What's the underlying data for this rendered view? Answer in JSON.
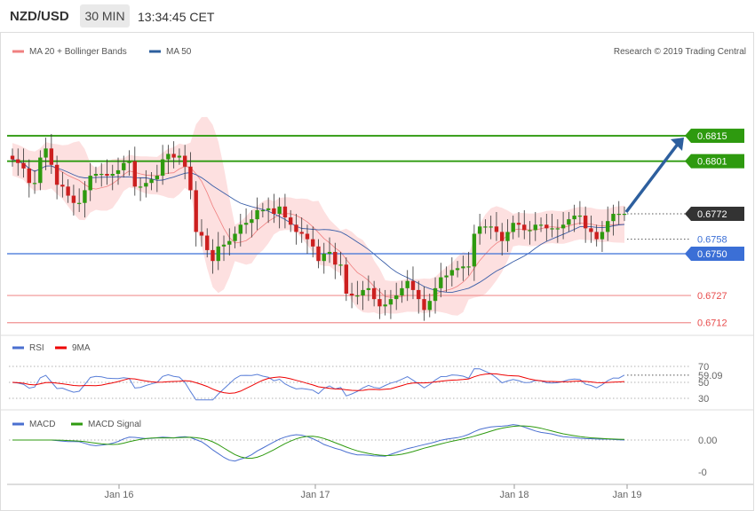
{
  "header": {
    "pair": "NZD/USD",
    "timeframe": "30 MIN",
    "time": "13:34:45 CET"
  },
  "main_legend": {
    "ma20": "MA 20 + Bollinger Bands",
    "ma50": "MA 50",
    "copyright": "Research © 2019 Trading Central"
  },
  "rsi_legend": {
    "rsi": "RSI",
    "ma9": "9MA"
  },
  "macd_legend": {
    "macd": "MACD",
    "signal": "MACD Signal"
  },
  "colors": {
    "green": "#2e9a0f",
    "blue": "#3b6fd6",
    "red": "#e84c4c",
    "dark": "#333333",
    "band": "#fde0e0",
    "macd": "#4a6fd0",
    "signal": "#2e9a0f",
    "arrow": "#2d5f9e"
  },
  "chart_data": [
    {
      "type": "candlestick",
      "title": "NZD/USD 30 MIN",
      "x_ticks": [
        "Jan 16",
        "Jan 17",
        "Jan 18",
        "Jan 19"
      ],
      "ylim": [
        0.6705,
        0.683
      ],
      "levels": [
        {
          "label": "0.6815",
          "value": 0.6815,
          "kind": "resistance target"
        },
        {
          "label": "0.6801",
          "value": 0.6801,
          "kind": "resistance target"
        },
        {
          "label": "0.6772",
          "value": 0.6772,
          "kind": "last price"
        },
        {
          "label": "0.6758",
          "value": 0.6758,
          "kind": "ma50"
        },
        {
          "label": "0.6750",
          "value": 0.675,
          "kind": "pivot"
        },
        {
          "label": "0.6727",
          "value": 0.6727,
          "kind": "support"
        },
        {
          "label": "0.6712",
          "value": 0.6712,
          "kind": "support"
        }
      ],
      "close_path": [
        0.6802,
        0.68,
        0.6797,
        0.6789,
        0.6789,
        0.6803,
        0.6808,
        0.6799,
        0.6788,
        0.6787,
        0.6782,
        0.6778,
        0.6778,
        0.6785,
        0.6793,
        0.6794,
        0.6794,
        0.6793,
        0.6794,
        0.6796,
        0.68,
        0.6801,
        0.6787,
        0.6787,
        0.6789,
        0.6791,
        0.6793,
        0.6802,
        0.6805,
        0.6803,
        0.6804,
        0.6798,
        0.6785,
        0.6762,
        0.676,
        0.6752,
        0.6746,
        0.6754,
        0.6755,
        0.6757,
        0.6761,
        0.6766,
        0.6767,
        0.6769,
        0.6774,
        0.6774,
        0.6775,
        0.6772,
        0.6776,
        0.677,
        0.6766,
        0.6762,
        0.6761,
        0.6758,
        0.6754,
        0.6746,
        0.675,
        0.6751,
        0.6744,
        0.6744,
        0.6728,
        0.6727,
        0.6727,
        0.673,
        0.6731,
        0.6725,
        0.6721,
        0.6722,
        0.6725,
        0.6727,
        0.6731,
        0.6735,
        0.673,
        0.6725,
        0.6719,
        0.6724,
        0.6731,
        0.6737,
        0.6738,
        0.6741,
        0.6742,
        0.6743,
        0.6743,
        0.6761,
        0.6765,
        0.6765,
        0.6765,
        0.6762,
        0.6757,
        0.6762,
        0.6767,
        0.6766,
        0.6763,
        0.6763,
        0.6766,
        0.6766,
        0.6764,
        0.6764,
        0.6764,
        0.6766,
        0.6769,
        0.6771,
        0.6771,
        0.6764,
        0.6762,
        0.6758,
        0.6762,
        0.6768,
        0.6772,
        0.6772,
        0.6772
      ]
    },
    {
      "type": "line",
      "title": "RSI",
      "yticks": [
        30,
        50,
        70
      ],
      "series": [
        {
          "name": "RSI",
          "last": 59.09
        },
        {
          "name": "9MA"
        }
      ]
    },
    {
      "type": "line",
      "title": "MACD",
      "yticks": [
        "0.00",
        "-0"
      ],
      "series": [
        {
          "name": "MACD",
          "last": "0.00"
        },
        {
          "name": "MACD Signal"
        }
      ]
    }
  ]
}
